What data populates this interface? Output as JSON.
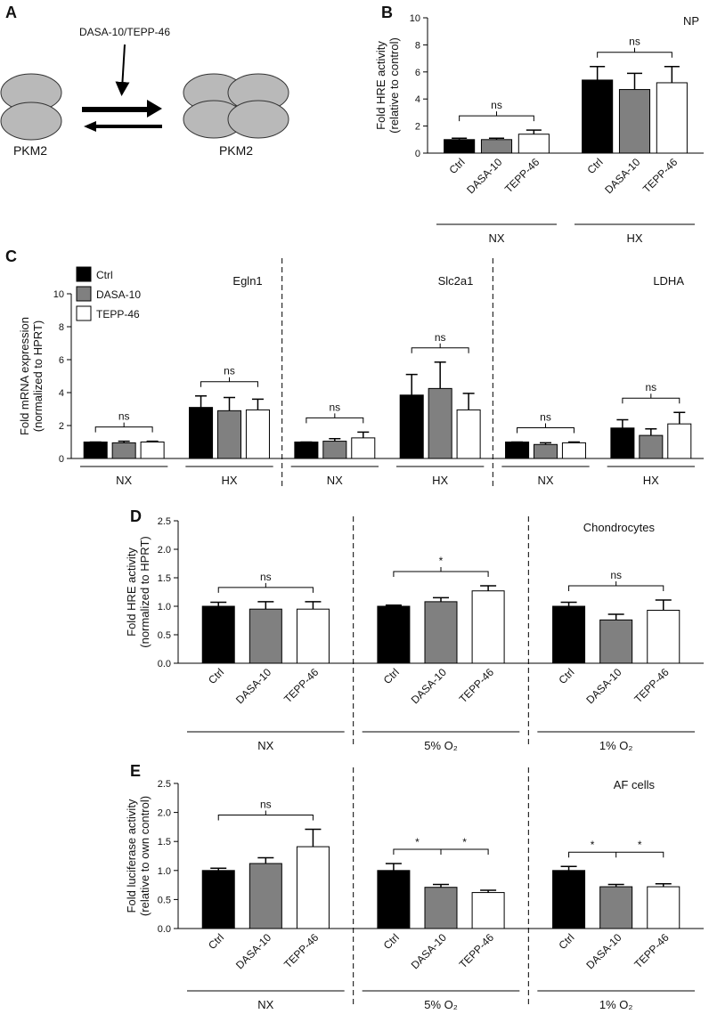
{
  "diagram": {
    "panel": "A",
    "treatment": "DASA-10/TEPP-46",
    "left": "PKM2",
    "right": "PKM2"
  },
  "chart_data": [
    {
      "type": "bar",
      "panel": "B",
      "ylabel": [
        "Fold HRE activity",
        "(relative to control)"
      ],
      "annotation": "NP",
      "ylim": [
        0,
        10
      ],
      "yticks": [
        0,
        2,
        4,
        6,
        8,
        10
      ],
      "bar_labels": true,
      "separators": false,
      "categories": [
        "NX",
        "HX"
      ],
      "series": [
        {
          "name": "Ctrl",
          "color": "#000000",
          "values": [
            1.0,
            5.4
          ],
          "errors": [
            0.1,
            1.0
          ]
        },
        {
          "name": "DASA-10",
          "color": "#808080",
          "values": [
            1.0,
            4.7
          ],
          "errors": [
            0.1,
            1.2
          ]
        },
        {
          "name": "TEPP-46",
          "color": "#ffffff",
          "values": [
            1.4,
            5.2
          ],
          "errors": [
            0.3,
            1.2
          ]
        }
      ],
      "significance": [
        [
          "ns"
        ],
        [
          "ns"
        ]
      ]
    },
    {
      "type": "bar",
      "panel": "C",
      "ylabel": [
        "Fold mRNA expression",
        "(normalized to HPRT)"
      ],
      "ylim": [
        0,
        10
      ],
      "yticks": [
        0,
        2,
        4,
        6,
        8,
        10
      ],
      "legend": "top-left",
      "bar_labels": false,
      "separators": true,
      "sections": [
        "Egln1",
        "Slc2a1",
        "LDHA"
      ],
      "categories": [
        "NX",
        "HX",
        "NX",
        "HX",
        "NX",
        "HX"
      ],
      "series": [
        {
          "name": "Ctrl",
          "color": "#000000",
          "values": [
            1.0,
            3.1,
            1.0,
            3.85,
            1.0,
            1.85
          ],
          "errors": [
            0,
            0.7,
            0,
            1.25,
            0,
            0.5
          ]
        },
        {
          "name": "DASA-10",
          "color": "#808080",
          "values": [
            0.95,
            2.9,
            1.05,
            4.25,
            0.85,
            1.4
          ],
          "errors": [
            0.1,
            0.8,
            0.15,
            1.6,
            0.1,
            0.4
          ]
        },
        {
          "name": "TEPP-46",
          "color": "#ffffff",
          "values": [
            1.0,
            2.95,
            1.25,
            2.95,
            0.95,
            2.1
          ],
          "errors": [
            0.05,
            0.65,
            0.35,
            1.0,
            0.05,
            0.7
          ]
        }
      ],
      "significance": [
        [
          "ns"
        ],
        [
          "ns"
        ],
        [
          "ns"
        ],
        [
          "ns"
        ],
        [
          "ns"
        ],
        [
          "ns"
        ]
      ]
    },
    {
      "type": "bar",
      "panel": "D",
      "ylabel": [
        "Fold HRE activity",
        "(normalized to HPRT)"
      ],
      "annotation": "Chondrocytes",
      "ylim": [
        0,
        2.5
      ],
      "yticks": [
        {
          "value": 0,
          "label": "0.0"
        },
        0.5,
        {
          "value": 1,
          "label": "1.0"
        },
        1.5,
        {
          "value": 2,
          "label": "2.0"
        },
        2.5
      ],
      "bar_labels": true,
      "separators": true,
      "categories": [
        "NX",
        "5% O₂",
        "1% O₂"
      ],
      "series": [
        {
          "name": "Ctrl",
          "color": "#000000",
          "values": [
            1.0,
            1.0,
            1.0
          ],
          "errors": [
            0.07,
            0.02,
            0.07
          ]
        },
        {
          "name": "DASA-10",
          "color": "#808080",
          "values": [
            0.95,
            1.08,
            0.76
          ],
          "errors": [
            0.13,
            0.07,
            0.1
          ]
        },
        {
          "name": "TEPP-46",
          "color": "#ffffff",
          "values": [
            0.95,
            1.27,
            0.93
          ],
          "errors": [
            0.13,
            0.09,
            0.18
          ]
        }
      ],
      "significance": [
        [
          "ns"
        ],
        [
          "*"
        ],
        [
          "ns"
        ]
      ]
    },
    {
      "type": "bar",
      "panel": "E",
      "ylabel": [
        "Fold luciferase activity",
        "(relative to own control)"
      ],
      "annotation": "AF cells",
      "ylim": [
        0,
        2.5
      ],
      "yticks": [
        {
          "value": 0,
          "label": "0.0"
        },
        0.5,
        {
          "value": 1,
          "label": "1.0"
        },
        1.5,
        {
          "value": 2,
          "label": "2.0"
        },
        2.5
      ],
      "bar_labels": true,
      "separators": true,
      "categories": [
        "NX",
        "5% O₂",
        "1% O₂"
      ],
      "series": [
        {
          "name": "Ctrl",
          "color": "#000000",
          "values": [
            1.0,
            1.0,
            1.0
          ],
          "errors": [
            0.04,
            0.12,
            0.07
          ]
        },
        {
          "name": "DASA-10",
          "color": "#808080",
          "values": [
            1.12,
            0.71,
            0.72
          ],
          "errors": [
            0.1,
            0.05,
            0.04
          ]
        },
        {
          "name": "TEPP-46",
          "color": "#ffffff",
          "values": [
            1.41,
            0.62,
            0.72
          ],
          "errors": [
            0.3,
            0.04,
            0.05
          ]
        }
      ],
      "significance": [
        [
          "ns"
        ],
        [
          "*",
          "*"
        ],
        [
          "*",
          "*"
        ]
      ]
    }
  ]
}
